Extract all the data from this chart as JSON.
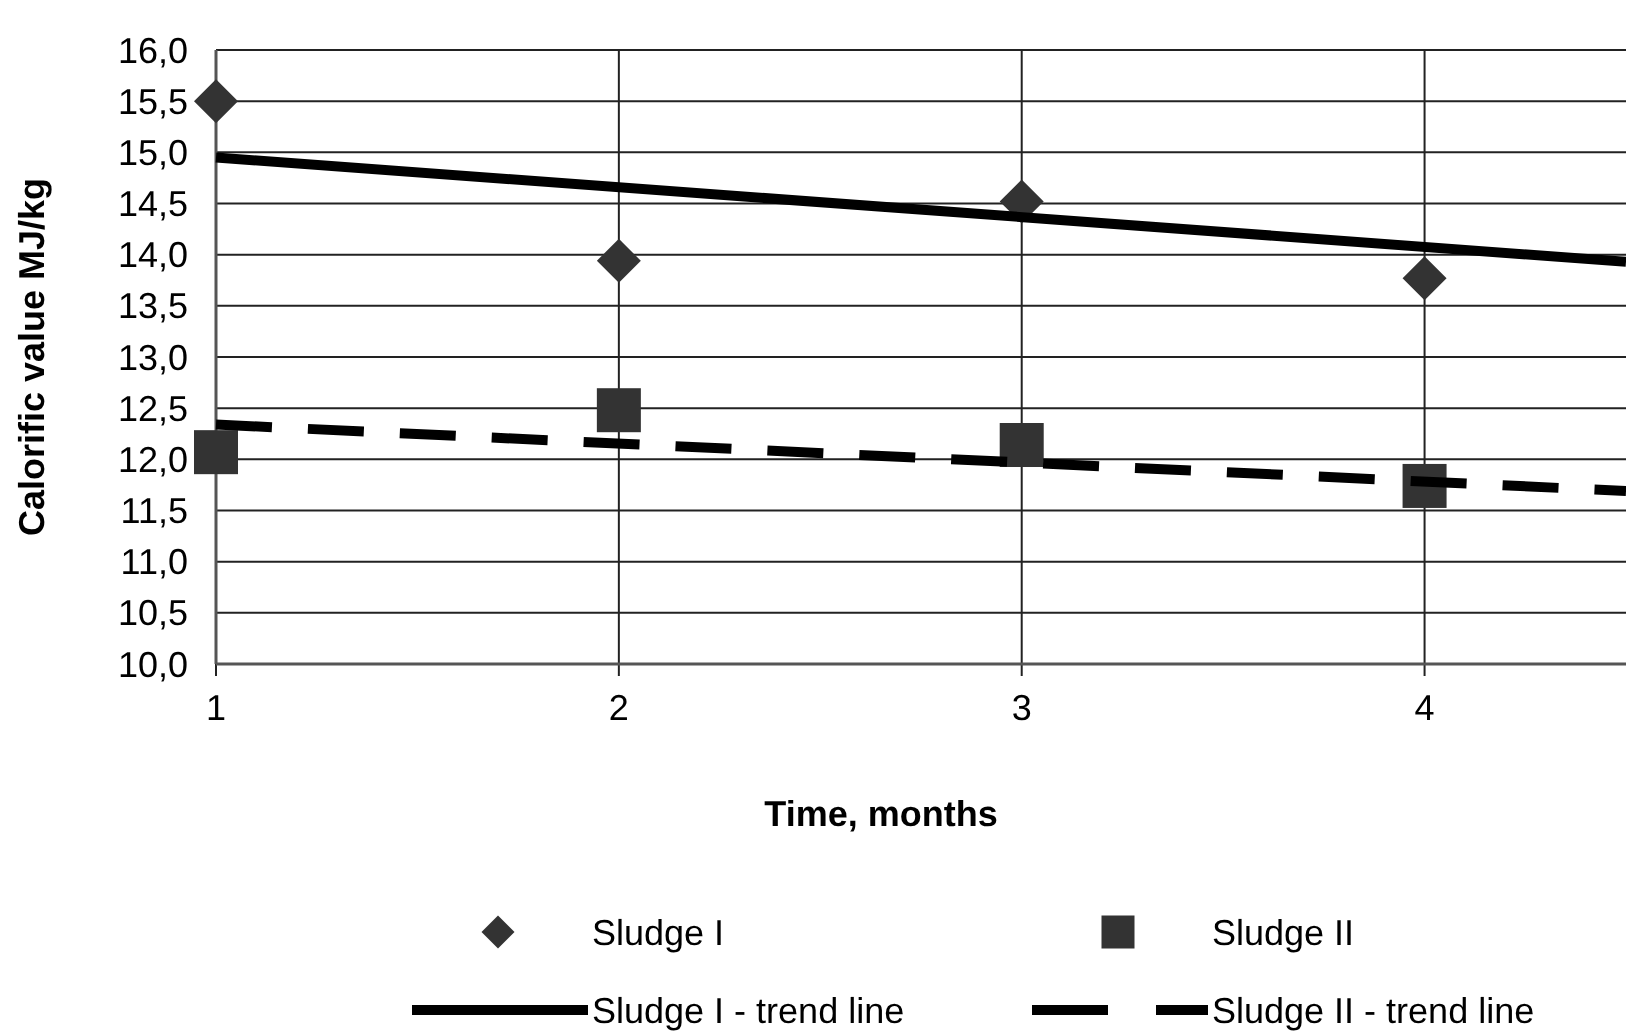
{
  "chart_data": {
    "type": "scatter",
    "xlabel": "Time, months",
    "ylabel": "Calorific value MJ/kg",
    "xlim": [
      1,
      4.5
    ],
    "xticks": [
      1,
      2,
      3,
      4
    ],
    "ylim": [
      10,
      16
    ],
    "yticks": [
      {
        "value": 10,
        "label": "10,0"
      },
      {
        "value": 10.5,
        "label": "10,5"
      },
      {
        "value": 11,
        "label": "11,0"
      },
      {
        "value": 11.5,
        "label": "11,5"
      },
      {
        "value": 12,
        "label": "12,0"
      },
      {
        "value": 12.5,
        "label": "12,5"
      },
      {
        "value": 13,
        "label": "13,0"
      },
      {
        "value": 13.5,
        "label": "13,5"
      },
      {
        "value": 14,
        "label": "14,0"
      },
      {
        "value": 14.5,
        "label": "14,5"
      },
      {
        "value": 15,
        "label": "15,0"
      },
      {
        "value": 15.5,
        "label": "15,5"
      },
      {
        "value": 16,
        "label": "16,0"
      }
    ],
    "grid": true,
    "legend": "bottom",
    "series": [
      {
        "name": "Sludge I",
        "marker": "diamond",
        "color": "#333333",
        "x": [
          1,
          2,
          3,
          4
        ],
        "values": [
          15.5,
          13.94,
          14.52,
          13.77
        ]
      },
      {
        "name": "Sludge II",
        "marker": "square",
        "color": "#333333",
        "x": [
          1,
          2,
          3,
          4
        ],
        "values": [
          12.07,
          12.48,
          12.14,
          11.74
        ]
      },
      {
        "name": "Sludge I - trend line",
        "type": "line",
        "marker": "none",
        "line_style": "solid",
        "color": "#000000",
        "x": [
          1,
          4.5
        ],
        "values": [
          14.95,
          13.93
        ]
      },
      {
        "name": "Sludge II - trend line",
        "type": "line",
        "marker": "none",
        "line_style": "dashed",
        "color": "#000000",
        "x": [
          1,
          4.5
        ],
        "values": [
          12.34,
          11.69
        ]
      }
    ]
  }
}
